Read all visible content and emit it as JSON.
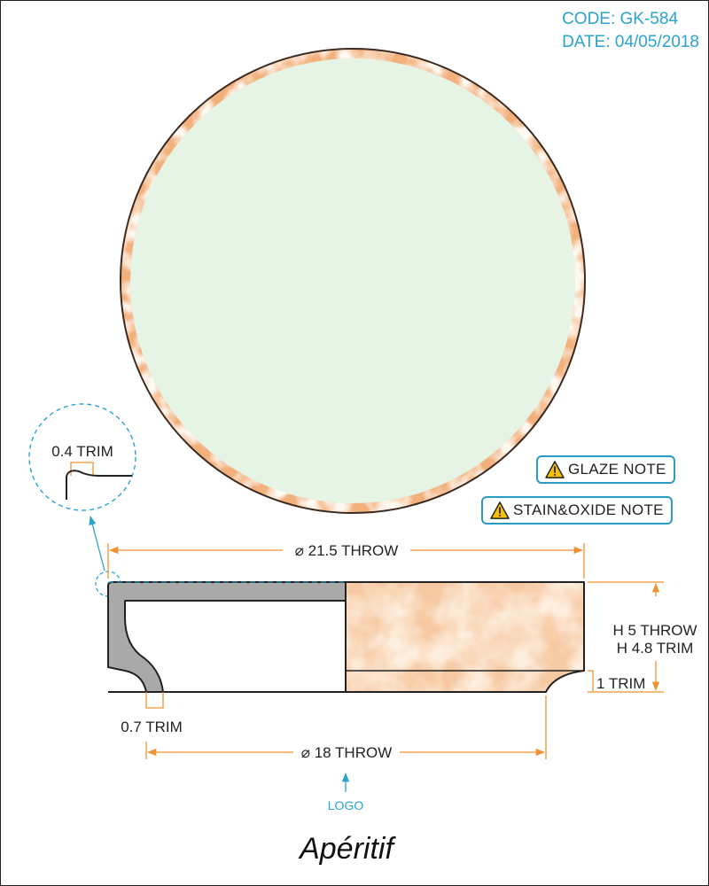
{
  "header": {
    "code": "CODE: GK-584",
    "date": "DATE: 04/05/2018"
  },
  "notes": {
    "glaze": "GLAZE NOTE",
    "stain": "STAIN&OXIDE NOTE"
  },
  "detail": {
    "label": "0.4 TRIM"
  },
  "dimensions": {
    "top_diameter": "⌀ 21.5 THROW",
    "height_throw": "H 5 THROW",
    "height_trim": "H 4.8 TRIM",
    "foot_trim": "1 TRIM",
    "wall_trim": "0.7 TRIM",
    "base_diameter": "⌀ 18 THROW"
  },
  "logo": {
    "label": "LOGO",
    "brand": "Apéritif"
  },
  "colors": {
    "accent": "#2aa3cf",
    "dimension": "#f0922f",
    "plate_fill": "#e6f4e6",
    "rim": "#f2b07c",
    "section": "#a9a9a9",
    "glaze": "#f6c9a2"
  },
  "icons": [
    "warning-icon"
  ]
}
